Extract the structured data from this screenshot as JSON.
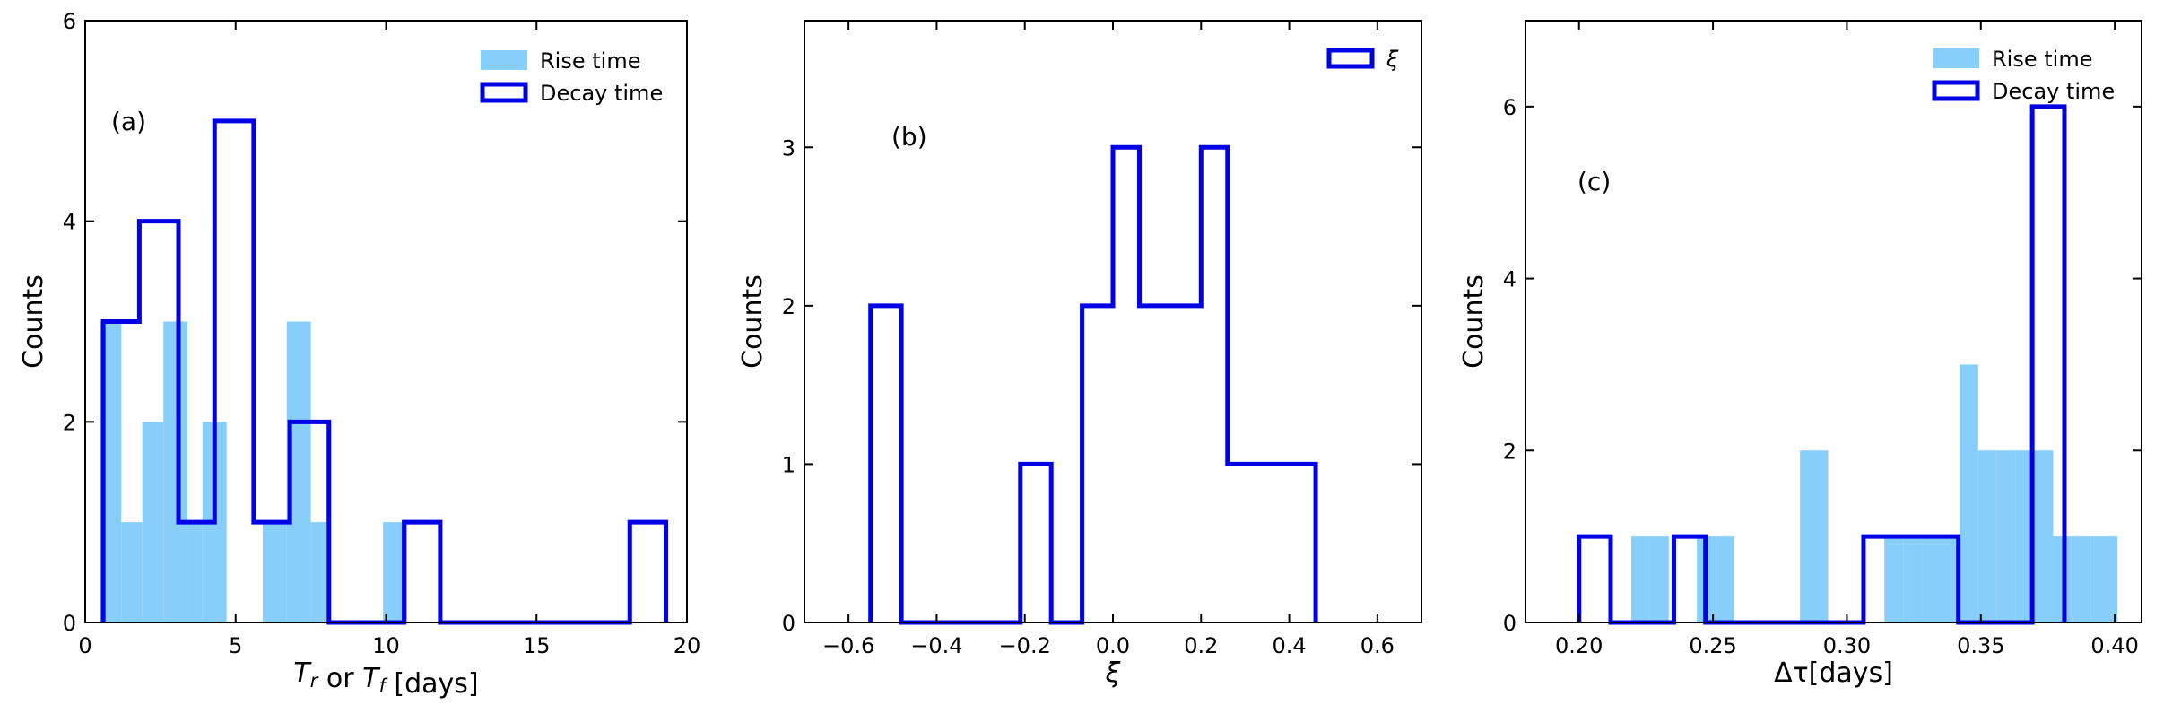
{
  "colors": {
    "rise": "#87cefa",
    "decay": "#0000e6",
    "axis": "#000000"
  },
  "chart_data": [
    {
      "type": "bar",
      "panel_label": "(a)",
      "xlabel": "T_r or T_f [days]",
      "ylabel": "Counts",
      "xlim": [
        0,
        20
      ],
      "ylim": [
        0,
        6
      ],
      "xticks": [
        0,
        5,
        10,
        15,
        20
      ],
      "yticks": [
        0,
        2,
        4,
        6
      ],
      "grid": false,
      "legend_position": "top-right",
      "legend": [
        "Rise time",
        "Decay time"
      ],
      "series": [
        {
          "name": "Rise time",
          "style": "filled",
          "bins": [
            {
              "x0": 0.5,
              "x1": 1.2,
              "value": 3
            },
            {
              "x0": 1.2,
              "x1": 1.9,
              "value": 1
            },
            {
              "x0": 1.9,
              "x1": 2.6,
              "value": 2
            },
            {
              "x0": 2.6,
              "x1": 3.4,
              "value": 3
            },
            {
              "x0": 3.4,
              "x1": 3.9,
              "value": 1
            },
            {
              "x0": 3.9,
              "x1": 4.7,
              "value": 2
            },
            {
              "x0": 5.9,
              "x1": 6.7,
              "value": 1
            },
            {
              "x0": 6.7,
              "x1": 7.5,
              "value": 3
            },
            {
              "x0": 7.5,
              "x1": 8.0,
              "value": 1
            },
            {
              "x0": 9.9,
              "x1": 10.7,
              "value": 1
            }
          ]
        },
        {
          "name": "Decay time",
          "style": "step",
          "edges": [
            0.6,
            1.8,
            3.1,
            4.3,
            5.6,
            6.8,
            8.1,
            9.3,
            10.6,
            11.8,
            13.1,
            14.3,
            15.6,
            16.8,
            18.1,
            19.3
          ],
          "counts": [
            3,
            4,
            1,
            5,
            1,
            2,
            0,
            0,
            1,
            0,
            0,
            0,
            0,
            0,
            1
          ]
        }
      ]
    },
    {
      "type": "bar",
      "panel_label": "(b)",
      "xlabel": "ξ",
      "ylabel": "Counts",
      "xlim": [
        -0.7,
        0.7
      ],
      "ylim": [
        0,
        3.8
      ],
      "xticks": [
        -0.6,
        -0.4,
        -0.2,
        0.0,
        0.2,
        0.4,
        0.6
      ],
      "xticklabels": [
        "−0.6",
        "−0.4",
        "−0.2",
        "0.0",
        "0.2",
        "0.4",
        "0.6"
      ],
      "yticks": [
        0,
        1,
        2,
        3
      ],
      "grid": false,
      "legend_position": "top-right",
      "legend": [
        "ξ"
      ],
      "series": [
        {
          "name": "ξ",
          "style": "step",
          "edges": [
            -0.55,
            -0.48,
            -0.41,
            -0.34,
            -0.27,
            -0.21,
            -0.14,
            -0.07,
            0.0,
            0.06,
            0.13,
            0.2,
            0.26,
            0.33,
            0.39,
            0.46
          ],
          "counts": [
            2,
            0,
            0,
            0,
            0,
            1,
            0,
            2,
            3,
            2,
            2,
            3,
            1,
            1,
            1
          ]
        }
      ]
    },
    {
      "type": "bar",
      "panel_label": "(c)",
      "xlabel": "Δτ[days]",
      "ylabel": "Counts",
      "xlim": [
        0.18,
        0.41
      ],
      "ylim": [
        0,
        7
      ],
      "xticks": [
        0.2,
        0.25,
        0.3,
        0.35,
        0.4
      ],
      "xticklabels": [
        "0.20",
        "0.25",
        "0.30",
        "0.35",
        "0.40"
      ],
      "yticks": [
        0,
        2,
        4,
        6
      ],
      "grid": false,
      "legend_position": "top-right",
      "legend": [
        "Rise time",
        "Decay time"
      ],
      "series": [
        {
          "name": "Rise time",
          "style": "filled",
          "bins": [
            {
              "x0": 0.2195,
              "x1": 0.2265,
              "value": 1
            },
            {
              "x0": 0.2265,
              "x1": 0.2335,
              "value": 1
            },
            {
              "x0": 0.244,
              "x1": 0.251,
              "value": 1
            },
            {
              "x0": 0.251,
              "x1": 0.258,
              "value": 1
            },
            {
              "x0": 0.2825,
              "x1": 0.293,
              "value": 2
            },
            {
              "x0": 0.314,
              "x1": 0.321,
              "value": 1
            },
            {
              "x0": 0.321,
              "x1": 0.328,
              "value": 1
            },
            {
              "x0": 0.328,
              "x1": 0.335,
              "value": 1
            },
            {
              "x0": 0.335,
              "x1": 0.342,
              "value": 1
            },
            {
              "x0": 0.342,
              "x1": 0.349,
              "value": 3
            },
            {
              "x0": 0.349,
              "x1": 0.356,
              "value": 2
            },
            {
              "x0": 0.356,
              "x1": 0.363,
              "value": 2
            },
            {
              "x0": 0.363,
              "x1": 0.37,
              "value": 2
            },
            {
              "x0": 0.37,
              "x1": 0.377,
              "value": 2
            },
            {
              "x0": 0.377,
              "x1": 0.384,
              "value": 1
            },
            {
              "x0": 0.384,
              "x1": 0.391,
              "value": 1
            },
            {
              "x0": 0.391,
              "x1": 0.401,
              "value": 1
            }
          ]
        },
        {
          "name": "Decay time",
          "style": "step",
          "edges": [
            0.2,
            0.2118,
            0.2236,
            0.2354,
            0.2472,
            0.259,
            0.2708,
            0.2826,
            0.2944,
            0.3062,
            0.318,
            0.3298,
            0.3416,
            0.3534,
            0.3652,
            0.3692,
            0.3812
          ],
          "counts": [
            1,
            0,
            0,
            1,
            0,
            0,
            0,
            0,
            0,
            1,
            1,
            1,
            0,
            0,
            0,
            6
          ]
        }
      ]
    }
  ]
}
